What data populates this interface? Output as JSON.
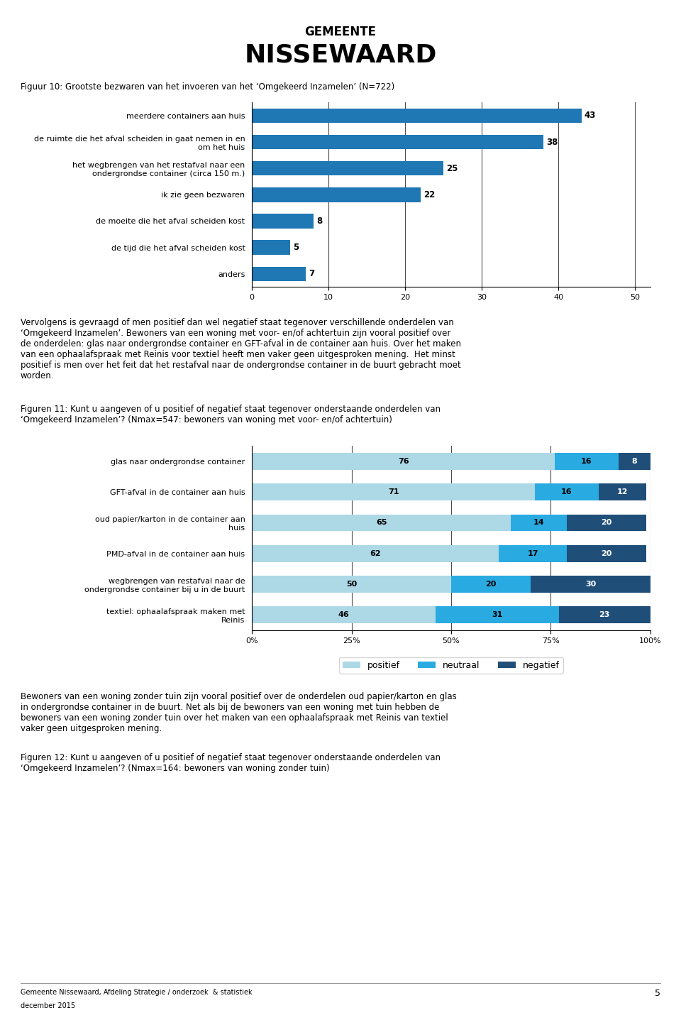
{
  "annotations": [
    "GEMEENTE",
    "NISSEWAARD",
    "Vervolgens is gevraagd of men positief dan wel negatief staat tegenover verschillende onderdelen van\n‘Omgekeerd Inzamelen’. Bewoners van een woning met voor- en/of achtertuin zijn vooral positief over\nde onderdelen: glas naar ondergrondse container en GFT-afval in de container aan huis. Over het maken\nvan een ophaalafspraak met Reinis voor textiel heeft men vaker geen uitgesproken mening.  Het minst\npositief is men over het feit dat het restafval naar de ondergrondse container in de buurt gebracht moet\nworden.",
    "Bewoners van een woning zonder tuin zijn vooral positief over de onderdelen oud papier/karton en glas\nin ondergrondse container in de buurt. Net als bij de bewoners van een woning met tuin hebben de\nbewoners van een woning zonder tuin over het maken van een ophaalafspraak met Reinis van textiel\nvaker geen uitgesproken mening.",
    "Figuren 12: Kunt u aangeven of u positief of negatief staat tegenover onderstaande onderdelen van\n‘Omgekeerd Inzamelen’? (Nmax=164: bewoners van woning zonder tuin)",
    "Gemeente Nissewaard, Afdeling Strategie / onderzoek  & statistiek",
    "december 2015",
    "5"
  ],
  "chart_data": [
    {
      "type": "bar",
      "orientation": "horizontal",
      "title": "Figuur 10: Grootste bezwaren van het invoeren van het ‘Omgekeerd Inzamelen’ (N=722)",
      "categories": [
        "meerdere containers aan huis",
        "de ruimte die het afval scheiden in gaat nemen in en\nom het huis",
        "het wegbrengen van het restafval naar een\nondergrondse container (circa 150 m.)",
        "ik zie geen bezwaren",
        "de moeite die het afval scheiden kost",
        "de tijd die het afval scheiden kost",
        "anders"
      ],
      "values": [
        43,
        38,
        25,
        22,
        8,
        5,
        7
      ],
      "xlim": [
        0,
        52
      ],
      "xticks": [
        0,
        10,
        20,
        30,
        40,
        50
      ],
      "grid": true,
      "data_labels": true
    },
    {
      "type": "bar",
      "orientation": "horizontal",
      "stacked": true,
      "title": "Figuren 11: Kunt u aangeven of u positief of negatief staat tegenover onderstaande onderdelen van\n‘Omgekeerd Inzamelen’? (Nmax=547: bewoners van woning met voor- en/of achtertuin)",
      "categories": [
        "glas naar ondergrondse container",
        "GFT-afval in de container aan huis",
        "oud papier/karton in de container aan\nhuis",
        "PMD-afval in de container aan huis",
        "wegbrengen van restafval naar de\nondergrondse container bij u in de buurt",
        "textiel: ophaalafspraak maken met\nReinis"
      ],
      "series": [
        {
          "name": "positief",
          "color": "#ADD8E6",
          "values": [
            76,
            71,
            65,
            62,
            50,
            46
          ]
        },
        {
          "name": "neutraal",
          "color": "#29ABE2",
          "values": [
            16,
            16,
            14,
            17,
            20,
            31
          ]
        },
        {
          "name": "negatief",
          "color": "#1F4E79",
          "values": [
            8,
            12,
            20,
            20,
            30,
            23
          ]
        }
      ],
      "xlim": [
        0,
        100
      ],
      "xticks": [
        {
          "value": 0,
          "label": "0%"
        },
        {
          "value": 25,
          "label": "25%"
        },
        {
          "value": 50,
          "label": "50%"
        },
        {
          "value": 75,
          "label": "75%"
        },
        {
          "value": 100,
          "label": "100%"
        }
      ],
      "grid": true,
      "legend": "upper center",
      "data_labels": true
    }
  ]
}
